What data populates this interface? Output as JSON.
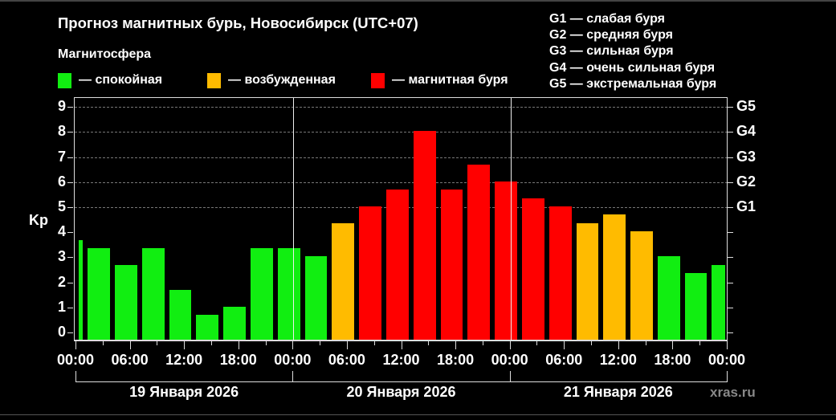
{
  "title": "Прогноз магнитных бурь, Новосибирск (UTC+07)",
  "subtitle": "Магнитосфера",
  "legend": [
    {
      "label": "— спокойная",
      "color": "#11ee11",
      "x": 0
    },
    {
      "label": "— возбужденная",
      "color": "#ffbb00",
      "x": 186
    },
    {
      "label": "— магнитная буря",
      "color": "#ff0000",
      "x": 390
    }
  ],
  "g_legend": [
    "G1 — слабая буря",
    "G2 — средняя буря",
    "G3 — сильная буря",
    "G4 — очень сильная буря",
    "G5 — экстремальная буря"
  ],
  "watermark": "xras.ru",
  "colors": {
    "quiet": "#11ee11",
    "excited": "#ffbb00",
    "storm": "#ff0000",
    "background": "#000000"
  },
  "chart_data": {
    "type": "bar",
    "title": "Прогноз магнитных бурь, Новосибирск (UTC+07)",
    "ylabel": "Kp",
    "xlabel": "",
    "ylim": [
      -0.3,
      9.4
    ],
    "y_ticks": [
      0,
      1,
      2,
      3,
      4,
      5,
      6,
      7,
      8,
      9
    ],
    "right_axis_ticks": [
      {
        "label": "G1",
        "kp": 5
      },
      {
        "label": "G2",
        "kp": 6
      },
      {
        "label": "G3",
        "kp": 7
      },
      {
        "label": "G4",
        "kp": 8
      },
      {
        "label": "G5",
        "kp": 9
      }
    ],
    "x_tick_labels": [
      "00:00",
      "06:00",
      "12:00",
      "18:00",
      "00:00",
      "06:00",
      "12:00",
      "18:00",
      "00:00",
      "06:00",
      "12:00",
      "18:00",
      "00:00"
    ],
    "days": [
      "19 Января 2026",
      "20 Января 2026",
      "21 Января 2026"
    ],
    "grid": "dashed horizontal at Kp 5-9",
    "legend_position": "top",
    "bar_interval_hours": 3,
    "bars": [
      {
        "start_h": 0,
        "end_h": 1,
        "kp": 3.67,
        "level": "quiet"
      },
      {
        "start_h": 1,
        "end_h": 4,
        "kp": 3.33,
        "level": "quiet"
      },
      {
        "start_h": 4,
        "end_h": 7,
        "kp": 2.67,
        "level": "quiet"
      },
      {
        "start_h": 7,
        "end_h": 10,
        "kp": 3.33,
        "level": "quiet"
      },
      {
        "start_h": 10,
        "end_h": 13,
        "kp": 1.67,
        "level": "quiet"
      },
      {
        "start_h": 13,
        "end_h": 16,
        "kp": 0.67,
        "level": "quiet"
      },
      {
        "start_h": 16,
        "end_h": 19,
        "kp": 1.0,
        "level": "quiet"
      },
      {
        "start_h": 19,
        "end_h": 22,
        "kp": 3.33,
        "level": "quiet"
      },
      {
        "start_h": 22,
        "end_h": 25,
        "kp": 3.33,
        "level": "quiet"
      },
      {
        "start_h": 25,
        "end_h": 28,
        "kp": 3.0,
        "level": "quiet"
      },
      {
        "start_h": 28,
        "end_h": 31,
        "kp": 4.33,
        "level": "excited"
      },
      {
        "start_h": 31,
        "end_h": 34,
        "kp": 5.0,
        "level": "storm"
      },
      {
        "start_h": 34,
        "end_h": 37,
        "kp": 5.67,
        "level": "storm"
      },
      {
        "start_h": 37,
        "end_h": 40,
        "kp": 8.0,
        "level": "storm"
      },
      {
        "start_h": 40,
        "end_h": 43,
        "kp": 5.67,
        "level": "storm"
      },
      {
        "start_h": 43,
        "end_h": 46,
        "kp": 6.67,
        "level": "storm"
      },
      {
        "start_h": 46,
        "end_h": 49,
        "kp": 6.0,
        "level": "storm"
      },
      {
        "start_h": 49,
        "end_h": 52,
        "kp": 5.33,
        "level": "storm"
      },
      {
        "start_h": 52,
        "end_h": 55,
        "kp": 5.0,
        "level": "storm"
      },
      {
        "start_h": 55,
        "end_h": 58,
        "kp": 4.33,
        "level": "excited"
      },
      {
        "start_h": 58,
        "end_h": 61,
        "kp": 4.67,
        "level": "excited"
      },
      {
        "start_h": 61,
        "end_h": 64,
        "kp": 4.0,
        "level": "excited"
      },
      {
        "start_h": 64,
        "end_h": 67,
        "kp": 3.0,
        "level": "quiet"
      },
      {
        "start_h": 67,
        "end_h": 70,
        "kp": 2.33,
        "level": "quiet"
      },
      {
        "start_h": 70,
        "end_h": 72,
        "kp": 2.67,
        "level": "quiet"
      }
    ]
  }
}
